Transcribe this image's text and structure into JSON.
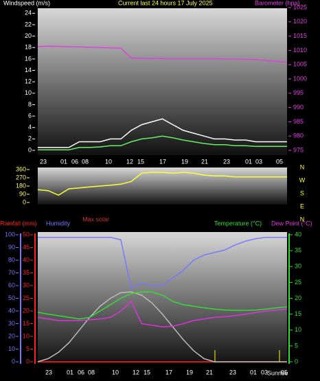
{
  "chart_data": [
    {
      "type": "line",
      "title": "Current last 24 hours 17 July 2025",
      "y_label": "Windspeed (m/s)",
      "x_tick_labels": [
        "23",
        "01",
        "06",
        "08",
        "10",
        "12",
        "15",
        "17",
        "19",
        "21",
        "23",
        "01",
        "03",
        "05"
      ],
      "ylim": [
        0,
        25
      ],
      "yticks": [
        0,
        2,
        4,
        6,
        8,
        10,
        12,
        14,
        16,
        18,
        20,
        22,
        24
      ],
      "y2lim": [
        975,
        1025
      ],
      "y2ticks": [
        975,
        980,
        985,
        990,
        995,
        1000,
        1005,
        1010,
        1015,
        1020,
        1025
      ],
      "series": [
        {
          "color": "#ffffff",
          "values": [
            0.5,
            0.5,
            0.5,
            0.5,
            1.5,
            1.5,
            1.5,
            2,
            2,
            3.5,
            4.5,
            5,
            5.5,
            4.5,
            3.5,
            3,
            2.5,
            2,
            2,
            1.8,
            1.8,
            1.5,
            1.5,
            1.5,
            1.5
          ]
        },
        {
          "color": "#66ee66",
          "values": [
            0.1,
            0.1,
            0.1,
            0.1,
            0.5,
            0.5,
            0.6,
            0.8,
            0.8,
            1.5,
            2,
            2.2,
            2.5,
            2.2,
            1.8,
            1.5,
            1.2,
            1,
            1,
            0.8,
            0.8,
            0.7,
            0.7,
            0.7,
            0.7
          ]
        },
        {
          "name": "Barometer (hpa)",
          "color": "#e040e0",
          "axis": "y2",
          "values": [
            1011.3,
            1011.5,
            1011.4,
            1011.3,
            1011.2,
            1011.1,
            1011,
            1010.9,
            1010.8,
            1007.3,
            1007.2,
            1007.2,
            1007.1,
            1007.1,
            1007.1,
            1007.1,
            1007.1,
            1007.1,
            1007,
            1007,
            1006.9,
            1006.8,
            1006.5,
            1006.2,
            1005.9
          ]
        }
      ]
    },
    {
      "type": "line",
      "ylim": [
        0,
        360
      ],
      "yticks": [
        0,
        90,
        180,
        270,
        360
      ],
      "compass_labels": [
        "N",
        "W",
        "S",
        "E",
        "N"
      ],
      "series": [
        {
          "color": "#ffff33",
          "values": [
            140,
            130,
            80,
            150,
            160,
            170,
            180,
            190,
            200,
            230,
            320,
            330,
            330,
            320,
            330,
            320,
            300,
            290,
            290,
            280,
            280,
            280,
            280,
            280,
            280
          ]
        }
      ]
    },
    {
      "type": "line",
      "sunrise_label": "Sunrise",
      "x_tick_labels": [
        "23",
        "01",
        "06",
        "08",
        "10",
        "12",
        "15",
        "17",
        "19",
        "21",
        "23",
        "01",
        "03",
        "05"
      ],
      "ylim": [
        0,
        100
      ],
      "yticks": [
        0,
        10,
        20,
        30,
        40,
        50,
        60,
        70,
        80,
        90,
        100
      ],
      "y2lim": [
        0,
        40
      ],
      "y2ticks": [
        0,
        5,
        10,
        15,
        20,
        25,
        30,
        35,
        40
      ],
      "y3lim": [
        0,
        50
      ],
      "y3ticks": [
        0,
        5,
        10,
        15,
        20,
        25,
        30,
        35,
        40,
        45,
        50
      ],
      "series": [
        {
          "name": "Rainfall (mm)",
          "color": "#ff2222",
          "axis": "y3",
          "values": [
            0,
            0,
            0,
            0,
            0,
            0,
            0,
            0,
            0,
            0,
            0,
            0,
            0,
            0,
            0,
            0,
            0,
            0,
            0,
            0,
            0,
            0,
            0,
            0,
            0
          ]
        },
        {
          "name": "Humidity",
          "color": "#7777ff",
          "values": [
            98,
            98,
            98,
            98,
            98,
            98,
            98,
            98,
            96,
            58,
            62,
            60,
            60,
            66,
            72,
            80,
            84,
            86,
            88,
            92,
            95,
            97,
            98,
            98,
            98
          ]
        },
        {
          "name": "Max solar",
          "color": "#bbbbbb",
          "axis": "y2",
          "values": [
            0,
            1,
            3,
            6,
            10,
            14,
            17.5,
            20,
            21.8,
            22,
            21,
            18.5,
            15,
            11,
            7,
            3.5,
            1,
            0,
            0,
            0,
            0,
            0,
            0,
            0,
            0
          ]
        },
        {
          "name": "Temperature (°C)",
          "color": "#33dd33",
          "axis": "y2",
          "values": [
            15.6,
            15,
            14.5,
            14,
            13.5,
            14,
            16,
            18,
            20,
            21.5,
            22,
            22,
            21,
            19,
            18,
            17.5,
            17,
            16.6,
            16.3,
            16.2,
            16.2,
            16.3,
            16.6,
            17,
            17.3
          ]
        },
        {
          "name": "Dew Point (°C)",
          "color": "#dd33dd",
          "axis": "y2",
          "values": [
            14,
            13.5,
            13,
            13,
            13,
            13.2,
            13.5,
            14,
            16,
            19,
            12,
            11.5,
            11,
            11.2,
            12,
            13,
            13.5,
            14,
            14.2,
            14.5,
            15,
            15.5,
            16,
            16.3,
            16.6
          ]
        }
      ]
    }
  ]
}
